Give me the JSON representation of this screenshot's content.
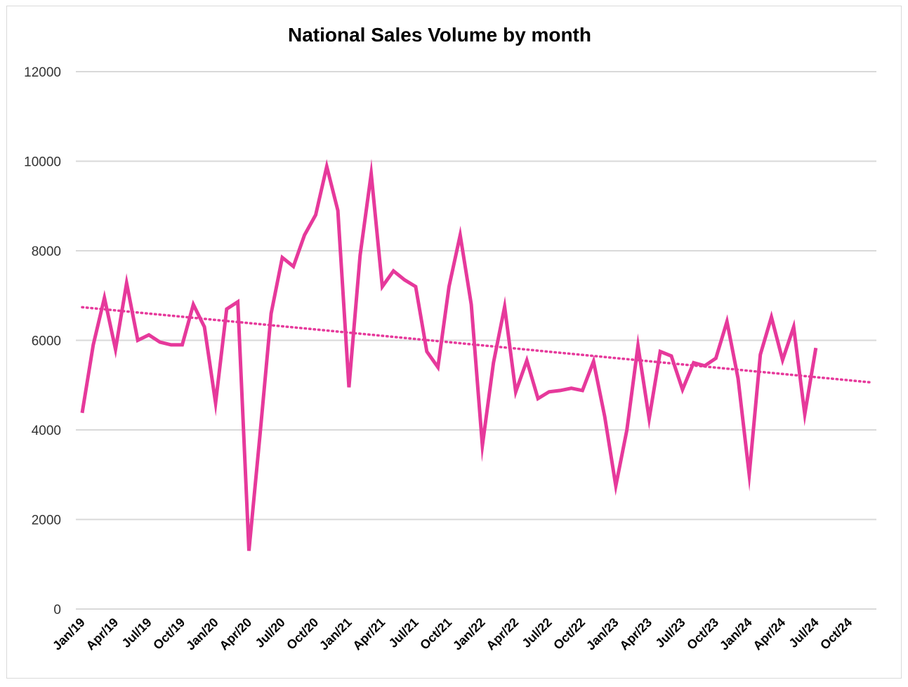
{
  "chart_data": {
    "type": "line",
    "title": "National Sales Volume by month",
    "xlabel": "",
    "ylabel": "",
    "ylim": [
      0,
      12000
    ],
    "yticks": [
      "0",
      "2000",
      "4000",
      "6000",
      "8000",
      "10000",
      "12000"
    ],
    "yticks_values": [
      0,
      2000,
      4000,
      6000,
      8000,
      10000,
      12000
    ],
    "grid": true,
    "x_tick_labels": [
      "Jan/19",
      "Apr/19",
      "Jul/19",
      "Oct/19",
      "Jan/20",
      "Apr/20",
      "Jul/20",
      "Oct/20",
      "Jan/21",
      "Apr/21",
      "Jul/21",
      "Oct/21",
      "Jan/22",
      "Apr/22",
      "Jul/22",
      "Oct/22",
      "Jan/23",
      "Apr/23",
      "Jul/23",
      "Oct/23",
      "Jan/24",
      "Apr/24",
      "Jul/24",
      "Oct/24"
    ],
    "x_axis_months": 72,
    "series": [
      {
        "name": "National Sales Volume",
        "color": "#e6399b",
        "values": [
          4380,
          5900,
          6950,
          5800,
          7280,
          6000,
          6120,
          5960,
          5900,
          5900,
          6800,
          6300,
          4600,
          6700,
          6860,
          1300,
          3900,
          6600,
          7850,
          7650,
          8350,
          8800,
          9880,
          8900,
          4950,
          7900,
          9720,
          7200,
          7550,
          7350,
          7200,
          5750,
          5400,
          7200,
          8350,
          6800,
          3650,
          5500,
          6750,
          4850,
          5550,
          4700,
          4850,
          4880,
          4930,
          4880,
          5530,
          4300,
          2750,
          4000,
          5880,
          4250,
          5750,
          5650,
          4900,
          5500,
          5430,
          5600,
          6420,
          5150,
          3000,
          5680,
          6520,
          5560,
          6300,
          4350,
          5830
        ]
      }
    ],
    "trendline": {
      "name": "Linear trend",
      "style": "dotted",
      "color": "#e6399b",
      "start": 6740,
      "end": 5060
    }
  }
}
